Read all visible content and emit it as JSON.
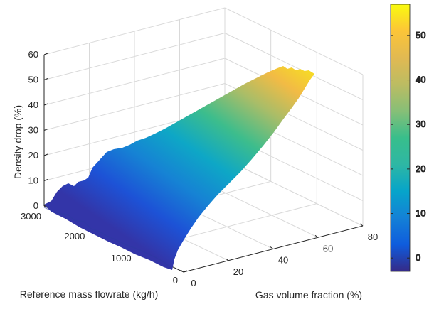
{
  "chart_data": {
    "type": "surface3d",
    "title": "",
    "xlabel": "Gas volume fraction (%)",
    "ylabel": "Reference mass flowrate (kg/h)",
    "zlabel": "Density drop (%)",
    "xlim": [
      0,
      80
    ],
    "ylim": [
      0,
      3000
    ],
    "zlim": [
      0,
      60
    ],
    "xticks": [
      "0",
      "20",
      "40",
      "60",
      "80"
    ],
    "yticks": [
      "0",
      "1000",
      "2000",
      "3000"
    ],
    "zticks": [
      "0",
      "10",
      "20",
      "30",
      "40",
      "50",
      "60"
    ],
    "colorbar": {
      "ticks": [
        "0",
        "10",
        "20",
        "30",
        "40",
        "50"
      ],
      "range": [
        -3,
        57
      ],
      "colormap": "parula"
    },
    "grid": true,
    "surface": {
      "description_points": [
        {
          "gvf": 0,
          "flow": 0,
          "drop": 0
        },
        {
          "gvf": 0,
          "flow": 3000,
          "drop": 0
        },
        {
          "gvf": 20,
          "flow": 3000,
          "drop": 17
        },
        {
          "gvf": 75,
          "flow": 3000,
          "drop": 54
        },
        {
          "gvf": 75,
          "flow": 0,
          "drop": 52
        }
      ]
    }
  }
}
